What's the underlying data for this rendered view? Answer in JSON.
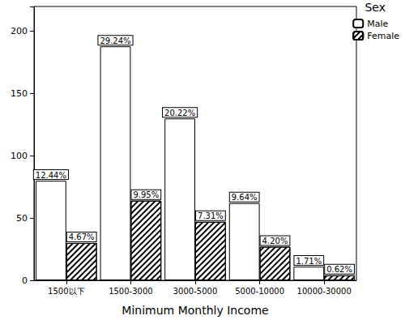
{
  "chart_data": {
    "type": "bar",
    "x_label": "Minimum Monthly Income",
    "categories": [
      "1500以下",
      "1500-3000",
      "3000-5000",
      "5000-10000",
      "10000-30000"
    ],
    "series": [
      {
        "name": "Male",
        "color": "#ffffff",
        "values": [
          80,
          188,
          130,
          62,
          11
        ],
        "percent_labels": [
          "12.44%",
          "29.24%",
          "20.22%",
          "9.64%",
          "1.71%"
        ]
      },
      {
        "name": "Female",
        "color": "#000000",
        "marker": "hatch",
        "values": [
          30,
          64,
          47,
          27,
          4
        ],
        "percent_labels": [
          "4.67%",
          "9.95%",
          "7.31%",
          "4.20%",
          "0.62%"
        ]
      }
    ],
    "legend_title": "Sex",
    "legend": "upper right",
    "ylim": [
      0,
      220
    ],
    "yticks": [
      0,
      50,
      100,
      150,
      200
    ],
    "grid": false
  }
}
